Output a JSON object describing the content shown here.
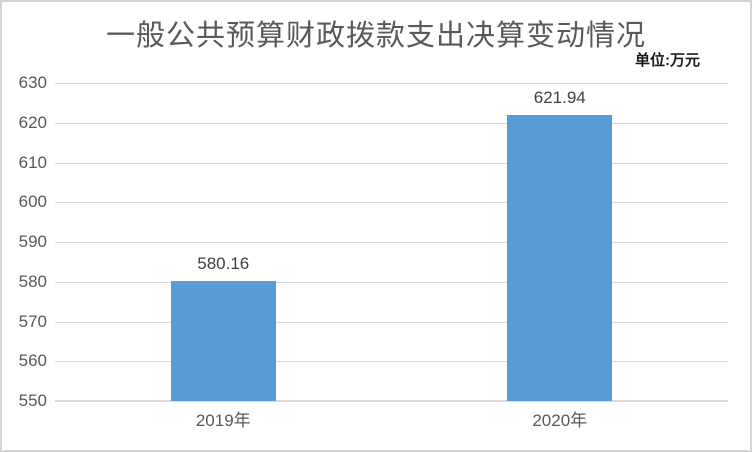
{
  "chart": {
    "title": "一般公共预算财政拨款支出决算变动情况",
    "unit_label": "单位:万元"
  },
  "chart_data": {
    "type": "bar",
    "title": "一般公共预算财政拨款支出决算变动情况",
    "subtitle": "",
    "unit": "单位:万元",
    "categories": [
      "2019年",
      "2020年"
    ],
    "values": [
      580.16,
      621.94
    ],
    "value_labels": [
      "580.16",
      "621.94"
    ],
    "xlabel": "",
    "ylabel": "",
    "ylim": [
      550,
      630
    ],
    "yticks": [
      550,
      560,
      570,
      580,
      590,
      600,
      610,
      620,
      630
    ],
    "grid": true,
    "legend": false,
    "colors": {
      "bar": "#5B9BD5",
      "title": "#595959",
      "axis_labels": "#595959",
      "value_labels": "#404040",
      "unit_label": "#1a1a1a",
      "gridline": "#D9D9D9",
      "axis_line": "#D9D9D9",
      "border": "#D3D3D3",
      "background": "#FFFFFF"
    }
  }
}
